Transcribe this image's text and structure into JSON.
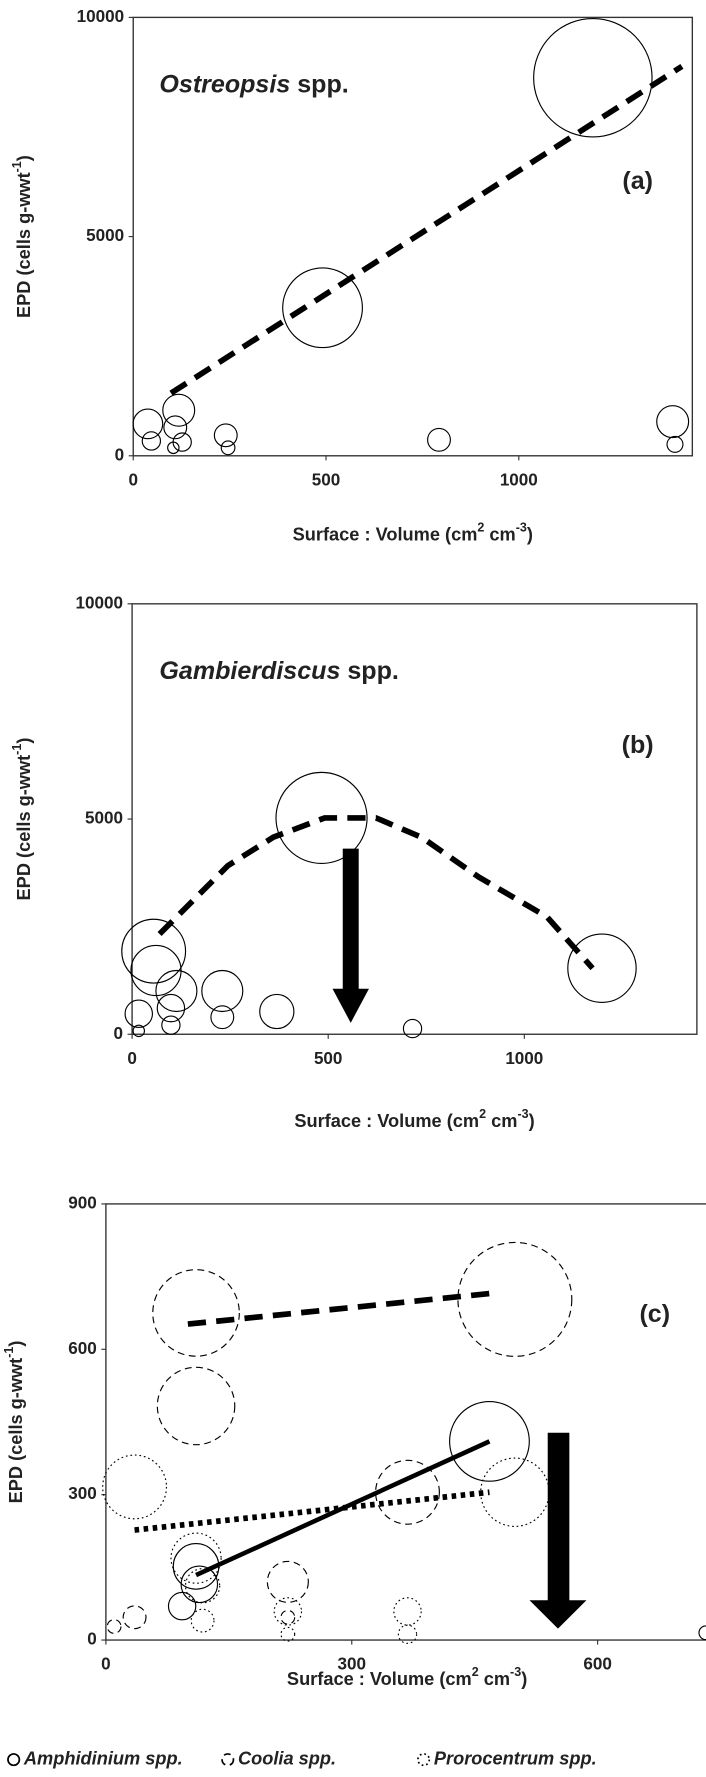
{
  "chart_data": [
    {
      "type": "bubble",
      "annotation": {
        "genus": "Ostreopsis",
        "suffix": "spp."
      },
      "panel_label": "(a)",
      "xlabel": {
        "parts": [
          "Surface : Volume (cm",
          "2",
          " cm",
          "-3",
          ")"
        ],
        "superscript": [
          false,
          true,
          false,
          true,
          false
        ]
      },
      "ylabel": {
        "parts": [
          "EPD (cells g-wwt",
          "-1",
          ")"
        ],
        "superscript": [
          false,
          true,
          false
        ]
      },
      "xlim": [
        0,
        1450
      ],
      "ylim": [
        0,
        10000
      ],
      "xticks": [
        0,
        500,
        1000
      ],
      "yticks": [
        0,
        5000,
        10000
      ],
      "series": [
        {
          "color": "#000000",
          "marker_style": "solid",
          "line_style": "dashed",
          "x": [
            1192,
            491,
            1399,
            1405,
            793,
            38,
            47,
            118,
            109,
            127,
            104,
            240,
            246
          ],
          "values": [
            8623,
            3377,
            779,
            260,
            364,
            727,
            338,
            1039,
            649,
            312,
            182,
            468,
            182
          ],
          "sizes": [
            52,
            35,
            14,
            7,
            10,
            13,
            8,
            14,
            10,
            8,
            5,
            10,
            6
          ],
          "trend": {
            "x": [
              98,
              1423
            ],
            "y": [
              1429,
              8883
            ]
          }
        }
      ]
    },
    {
      "type": "bubble",
      "annotation": {
        "genus": "Gambierdiscus",
        "suffix": "spp."
      },
      "panel_label": "(b)",
      "xlabel": {
        "parts": [
          "Surface : Volume (cm",
          "2",
          " cm",
          "-3",
          ")"
        ],
        "superscript": [
          false,
          true,
          false,
          true,
          false
        ]
      },
      "ylabel": {
        "parts": [
          "EPD (cells g-wwt",
          "-1",
          ")"
        ],
        "superscript": [
          false,
          true,
          false
        ]
      },
      "xlim": [
        0,
        1440
      ],
      "ylim": [
        0,
        10000
      ],
      "xticks": [
        0,
        500,
        1000
      ],
      "yticks": [
        0,
        5000,
        10000
      ],
      "series": [
        {
          "color": "#000000",
          "marker_style": "solid",
          "line_style": "dashed",
          "x": [
            483,
            1198,
            55,
            61,
            113,
            99,
            99,
            17,
            17,
            230,
            230,
            369,
            715
          ],
          "values": [
            5026,
            1534,
            1931,
            1481,
            1005,
            608,
            212,
            476,
            79,
            1005,
            397,
            529,
            132
          ],
          "sizes": [
            40,
            30,
            28,
            22,
            18,
            12,
            8,
            12,
            5,
            18,
            10,
            15,
            8
          ],
          "trend": {
            "x": [
              70,
              244,
              360,
              491,
              622,
              738,
              884,
              1058,
              1174
            ],
            "y": [
              2330,
              3915,
              4577,
              5026,
              5026,
              4577,
              3651,
              2725,
              1534
            ]
          }
        }
      ]
    },
    {
      "type": "bubble",
      "panel_label": "(c)",
      "xlabel": {
        "parts": [
          "Surface : Volume (cm",
          "2",
          " cm",
          "-3",
          ")"
        ],
        "superscript": [
          false,
          true,
          false,
          true,
          false
        ]
      },
      "ylabel": {
        "parts": [
          "EPD (cells g-wwt",
          "-1",
          ")"
        ],
        "superscript": [
          false,
          true,
          false
        ]
      },
      "xlim": [
        0,
        735
      ],
      "ylim": [
        0,
        900
      ],
      "xticks": [
        0,
        300,
        600
      ],
      "yticks": [
        0,
        300,
        600,
        900
      ],
      "series": [
        {
          "name": "Amphidinium spp.",
          "color": "#000000",
          "marker_style": "solid",
          "line_style": "solid",
          "x": [
            468,
            110,
            114,
            93,
            732
          ],
          "values": [
            410,
            152,
            115,
            70,
            15
          ],
          "sizes": [
            35,
            20,
            16,
            12,
            6
          ],
          "trend": {
            "x": [
              110,
              468
            ],
            "y": [
              134,
              410
            ]
          }
        },
        {
          "name": "Coolia spp.",
          "color": "#000000",
          "marker_style": "dashed",
          "line_style": "dashed",
          "x": [
            110,
            499,
            110,
            368,
            222,
            35,
            10,
            222
          ],
          "values": [
            675,
            703,
            483,
            305,
            120,
            47,
            28,
            47
          ],
          "sizes": [
            38,
            50,
            34,
            28,
            18,
            10,
            6,
            6
          ],
          "trend": {
            "x": [
              100,
              468
            ],
            "y": [
              652,
              715
            ]
          }
        },
        {
          "name": "Prorocentrum spp.",
          "color": "#000000",
          "marker_style": "dotted",
          "line_style": "dotted",
          "x": [
            35,
            499,
            110,
            118,
            222,
            368,
            368,
            118,
            222
          ],
          "values": [
            316,
            305,
            169,
            112,
            59,
            59,
            12,
            40,
            12
          ],
          "sizes": [
            28,
            30,
            22,
            15,
            12,
            12,
            8,
            10,
            6
          ],
          "trend": {
            "x": [
              35,
              468
            ],
            "y": [
              227,
              305
            ]
          }
        }
      ]
    }
  ]
}
